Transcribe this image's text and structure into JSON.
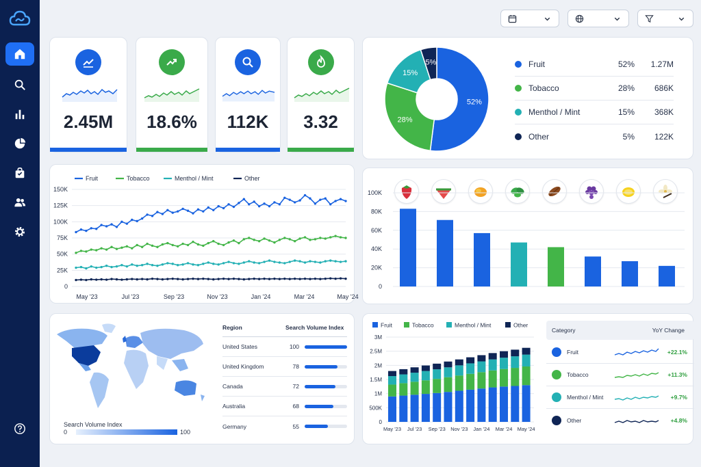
{
  "filters": {
    "date": "",
    "region": "",
    "filter": ""
  },
  "sidebar": {
    "items": [
      {
        "icon": "home-icon",
        "active": true
      },
      {
        "icon": "search-icon"
      },
      {
        "icon": "bar-chart-icon"
      },
      {
        "icon": "pie-chart-icon"
      },
      {
        "icon": "shopping-bag-icon"
      },
      {
        "icon": "users-icon"
      },
      {
        "icon": "settings-icon"
      }
    ],
    "help_icon": "help-icon"
  },
  "kpis": [
    {
      "value": "2.45M",
      "icon": "trending-line-icon",
      "color": "#1a63e0"
    },
    {
      "value": "18.6%",
      "icon": "trending-up-icon",
      "color": "#3aaa4a"
    },
    {
      "value": "112K",
      "icon": "search-icon",
      "color": "#1a63e0"
    },
    {
      "value": "3.32",
      "icon": "flame-icon",
      "color": "#3aaa4a"
    }
  ],
  "share": {
    "rows": [
      {
        "name": "Fruit",
        "pct": "52%",
        "value": "1.27M",
        "color": "#1a63e0"
      },
      {
        "name": "Tobacco",
        "pct": "28%",
        "value": "686K",
        "color": "#43b548"
      },
      {
        "name": "Menthol / Mint",
        "pct": "15%",
        "value": "368K",
        "color": "#23b0b4"
      },
      {
        "name": "Other",
        "pct": "5%",
        "value": "122K",
        "color": "#0f2555"
      }
    ]
  },
  "chart_data": [
    {
      "type": "pie",
      "title": "",
      "labels": [
        "Fruit",
        "Tobacco",
        "Menthol / Mint",
        "Other"
      ],
      "values": [
        52,
        28,
        15,
        5
      ],
      "data_labels": [
        "52%",
        "28%",
        "15%",
        "5%"
      ]
    },
    {
      "type": "line",
      "title": "",
      "legend": [
        "Fruit",
        "Tobacco",
        "Menthol / Mint",
        "Other"
      ],
      "x_ticks": [
        "May '23",
        "Jul '23",
        "Sep '23",
        "Nov '23",
        "Jan '24",
        "Mar '24",
        "May '24"
      ],
      "y_ticks": [
        "150K",
        "125K",
        "100K",
        "75K",
        "50K",
        "25K",
        "0"
      ],
      "ylim": [
        0,
        150000
      ],
      "grid": true,
      "series": [
        {
          "name": "Fruit",
          "color": "#1a63e0",
          "values": [
            84000,
            88000,
            86000,
            90000,
            89000,
            95000,
            93000,
            96000,
            92000,
            100000,
            97000,
            103000,
            101000,
            105000,
            111000,
            109000,
            115000,
            112000,
            118000,
            114000,
            116000,
            120000,
            117000,
            113000,
            119000,
            116000,
            122000,
            118000,
            124000,
            121000,
            127000,
            123000,
            129000,
            135000,
            127000,
            131000,
            124000,
            128000,
            124000,
            130000,
            127000,
            137000,
            134000,
            130000,
            133000,
            141000,
            136000,
            128000,
            134000,
            136000,
            127000,
            132000,
            135000,
            132000
          ]
        },
        {
          "name": "Tobacco",
          "color": "#43b548",
          "values": [
            52000,
            55000,
            54000,
            57000,
            56000,
            59000,
            57000,
            61000,
            58000,
            60000,
            62000,
            59000,
            64000,
            61000,
            66000,
            63000,
            61000,
            65000,
            67000,
            64000,
            62000,
            66000,
            64000,
            69000,
            65000,
            63000,
            67000,
            70000,
            66000,
            64000,
            68000,
            71000,
            67000,
            73000,
            75000,
            72000,
            70000,
            74000,
            71000,
            68000,
            72000,
            75000,
            73000,
            70000,
            74000,
            76000,
            72000,
            73000,
            75000,
            74000,
            76000,
            78000,
            76000,
            75000
          ]
        },
        {
          "name": "Menthol / Mint",
          "color": "#23b0b4",
          "values": [
            29000,
            30000,
            28000,
            31000,
            29000,
            30000,
            32000,
            30000,
            31000,
            33000,
            31000,
            34000,
            32000,
            33000,
            35000,
            33000,
            32000,
            34000,
            36000,
            35000,
            33000,
            34000,
            36000,
            34000,
            33000,
            35000,
            37000,
            35000,
            34000,
            36000,
            38000,
            36000,
            35000,
            37000,
            39000,
            37000,
            36000,
            38000,
            40000,
            38000,
            37000,
            36000,
            38000,
            40000,
            39000,
            37000,
            39000,
            38000,
            37000,
            39000,
            40000,
            39000,
            38000,
            39000
          ]
        },
        {
          "name": "Other",
          "color": "#0f2555",
          "values": [
            10000,
            10500,
            10000,
            11000,
            10500,
            11000,
            10500,
            11500,
            11000,
            10500,
            11000,
            11500,
            11000,
            11500,
            11000,
            12000,
            11500,
            11000,
            11500,
            12000,
            11500,
            11000,
            11500,
            12000,
            11500,
            12000,
            11500,
            11000,
            11500,
            12000,
            11500,
            12000,
            11500,
            11000,
            11500,
            12000,
            11500,
            12000,
            11500,
            12000,
            11500,
            12000,
            11500,
            12000,
            11500,
            12000,
            11500,
            12000,
            11500,
            12000,
            12500,
            12000,
            12500,
            12000
          ]
        }
      ]
    },
    {
      "type": "bar",
      "title": "",
      "categories": [
        "strawberry",
        "watermelon",
        "mango",
        "mint",
        "tobacco leaf",
        "grape",
        "lemon",
        "vanilla"
      ],
      "category_icons": [
        "strawberry-icon",
        "watermelon-icon",
        "mango-icon",
        "mint-leaf-icon",
        "tobacco-leaf-icon",
        "grape-icon",
        "lemon-icon",
        "vanilla-flower-icon"
      ],
      "values": [
        83000,
        71000,
        57000,
        47000,
        42000,
        32000,
        27000,
        22000
      ],
      "colors": [
        "#1a63e0",
        "#1a63e0",
        "#1a63e0",
        "#23b0b4",
        "#43b548",
        "#1a63e0",
        "#1a63e0",
        "#1a63e0"
      ],
      "y_ticks": [
        "100K",
        "80K",
        "60K",
        "40K",
        "20K",
        "0"
      ],
      "ylim": [
        0,
        100000
      ],
      "grid": true
    },
    {
      "type": "bar",
      "stacked": true,
      "title": "",
      "legend": [
        "Fruit",
        "Tobacco",
        "Menthol / Mint",
        "Other"
      ],
      "categories": [
        "May '23",
        "Jun '23",
        "Jul '23",
        "Aug '23",
        "Sep '23",
        "Oct '23",
        "Nov '23",
        "Dec '23",
        "Jan '24",
        "Feb '24",
        "Mar '24",
        "Apr '24",
        "May '24"
      ],
      "x_ticks": [
        "May '23",
        "Jul '23",
        "Sep '23",
        "Nov '23",
        "Jan '24",
        "Mar '24",
        "May '24"
      ],
      "y_ticks": [
        "3M",
        "2.5M",
        "2M",
        "1.5M",
        "1M",
        "500K",
        "0"
      ],
      "ylim": [
        0,
        3000000
      ],
      "grid": true,
      "series": [
        {
          "name": "Fruit",
          "color": "#1a63e0",
          "values": [
            900000,
            930000,
            960000,
            990000,
            1020000,
            1060000,
            1100000,
            1140000,
            1180000,
            1220000,
            1250000,
            1270000,
            1300000
          ]
        },
        {
          "name": "Tobacco",
          "color": "#43b548",
          "values": [
            420000,
            440000,
            460000,
            480000,
            500000,
            520000,
            540000,
            560000,
            580000,
            600000,
            620000,
            640000,
            660000
          ]
        },
        {
          "name": "Menthol / Mint",
          "color": "#23b0b4",
          "values": [
            300000,
            310000,
            320000,
            330000,
            340000,
            350000,
            360000,
            370000,
            380000,
            390000,
            400000,
            410000,
            420000
          ]
        },
        {
          "name": "Other",
          "color": "#0f2555",
          "values": [
            180000,
            185000,
            190000,
            195000,
            200000,
            205000,
            210000,
            215000,
            220000,
            225000,
            230000,
            235000,
            240000
          ]
        }
      ]
    }
  ],
  "line_legend": [
    {
      "name": "Fruit",
      "color": "#1a63e0"
    },
    {
      "name": "Tobacco",
      "color": "#43b548"
    },
    {
      "name": "Menthol / Mint",
      "color": "#23b0b4"
    },
    {
      "name": "Other",
      "color": "#0f2555"
    }
  ],
  "map": {
    "legend_title": "Search Volume Index",
    "legend_min": "0",
    "legend_max": "100",
    "table_headers": {
      "region": "Region",
      "index": "Search Volume Index"
    },
    "rows": [
      {
        "region": "United States",
        "index": "100",
        "level": 1.0
      },
      {
        "region": "United Kingdom",
        "index": "78",
        "level": 0.78
      },
      {
        "region": "Canada",
        "index": "72",
        "level": 0.72
      },
      {
        "region": "Australia",
        "index": "68",
        "level": 0.68
      },
      {
        "region": "Germany",
        "index": "55",
        "level": 0.55
      }
    ]
  },
  "stack_legend": [
    {
      "name": "Fruit",
      "color": "#1a63e0"
    },
    {
      "name": "Tobacco",
      "color": "#43b548"
    },
    {
      "name": "Menthol / Mint",
      "color": "#23b0b4"
    },
    {
      "name": "Other",
      "color": "#0f2555"
    }
  ],
  "yoy": {
    "headers": {
      "category": "Category",
      "change": "YoY Change"
    },
    "rows": [
      {
        "name": "Fruit",
        "change": "+22.1%",
        "color": "#1a63e0",
        "icon": "fruit-icon"
      },
      {
        "name": "Tobacco",
        "change": "+11.3%",
        "color": "#43b548",
        "icon": "leaf-icon"
      },
      {
        "name": "Menthol / Mint",
        "change": "+9.7%",
        "color": "#23b0b4",
        "icon": "mint-icon"
      },
      {
        "name": "Other",
        "change": "+4.8%",
        "color": "#0f2555",
        "icon": "more-icon"
      }
    ]
  }
}
